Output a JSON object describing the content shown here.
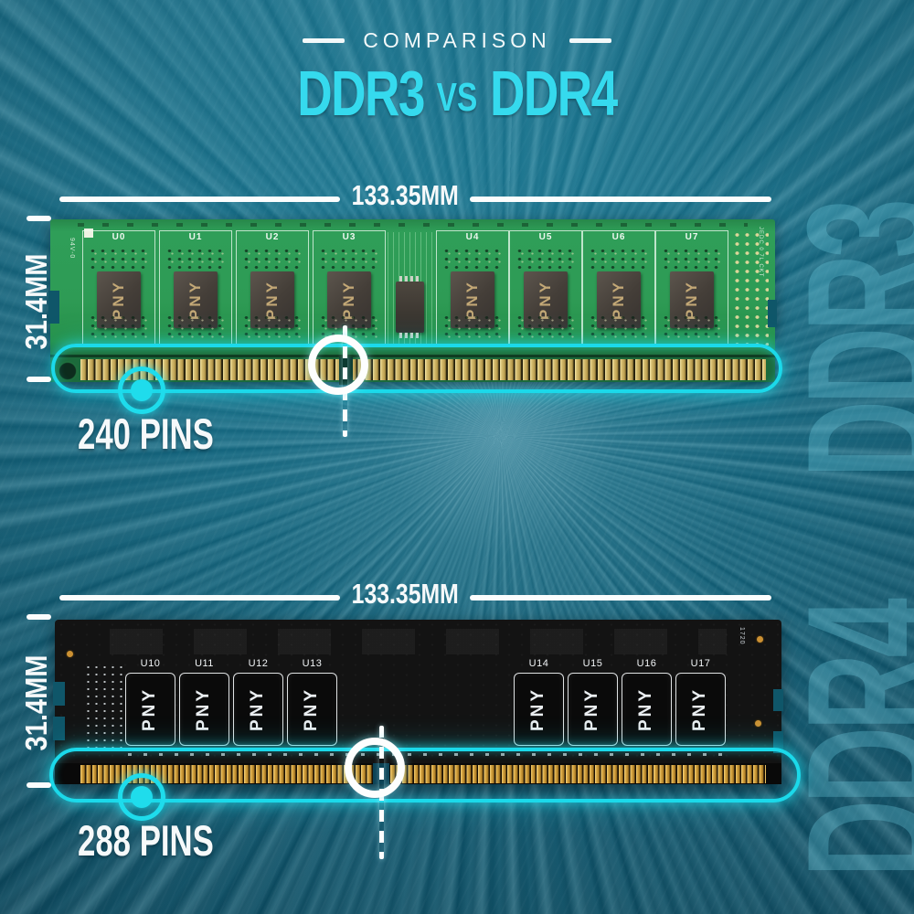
{
  "title": {
    "eyebrow": "COMPARISON",
    "heading_left": "DDR3",
    "heading_vs": "vs",
    "heading_right": "DDR4"
  },
  "colors": {
    "accent_cyan": "#1fd9ea",
    "heading_cyan": "#35daee",
    "background_teal": "#126078",
    "pcb_green": "#2e9b55",
    "pcb_black": "#131313",
    "pin_gold_ddr3": "#d6bd6f",
    "pin_gold_ddr4": "#d9a843",
    "text_white": "#f6f9fa"
  },
  "ddr3_section": {
    "watermark": "DDR3",
    "width_label": "133.35MM",
    "height_label": "31.4MM",
    "pins_label": "240 PINS",
    "brand": "PNY",
    "chip_labels": [
      "U0",
      "U1",
      "U2",
      "U3",
      "U4",
      "U5",
      "U6",
      "U7"
    ],
    "pcb_marking_left": "94V-0",
    "pcb_marking_right": "JEDC 0 7L CKT"
  },
  "ddr4_section": {
    "watermark": "DDR4",
    "width_label": "133.35MM",
    "height_label": "31.4MM",
    "pins_label": "288 PINS",
    "brand": "PNY",
    "chip_labels": [
      "U10",
      "U11",
      "U12",
      "U13",
      "U14",
      "U15",
      "U16",
      "U17"
    ],
    "pcb_marking": "1720"
  }
}
